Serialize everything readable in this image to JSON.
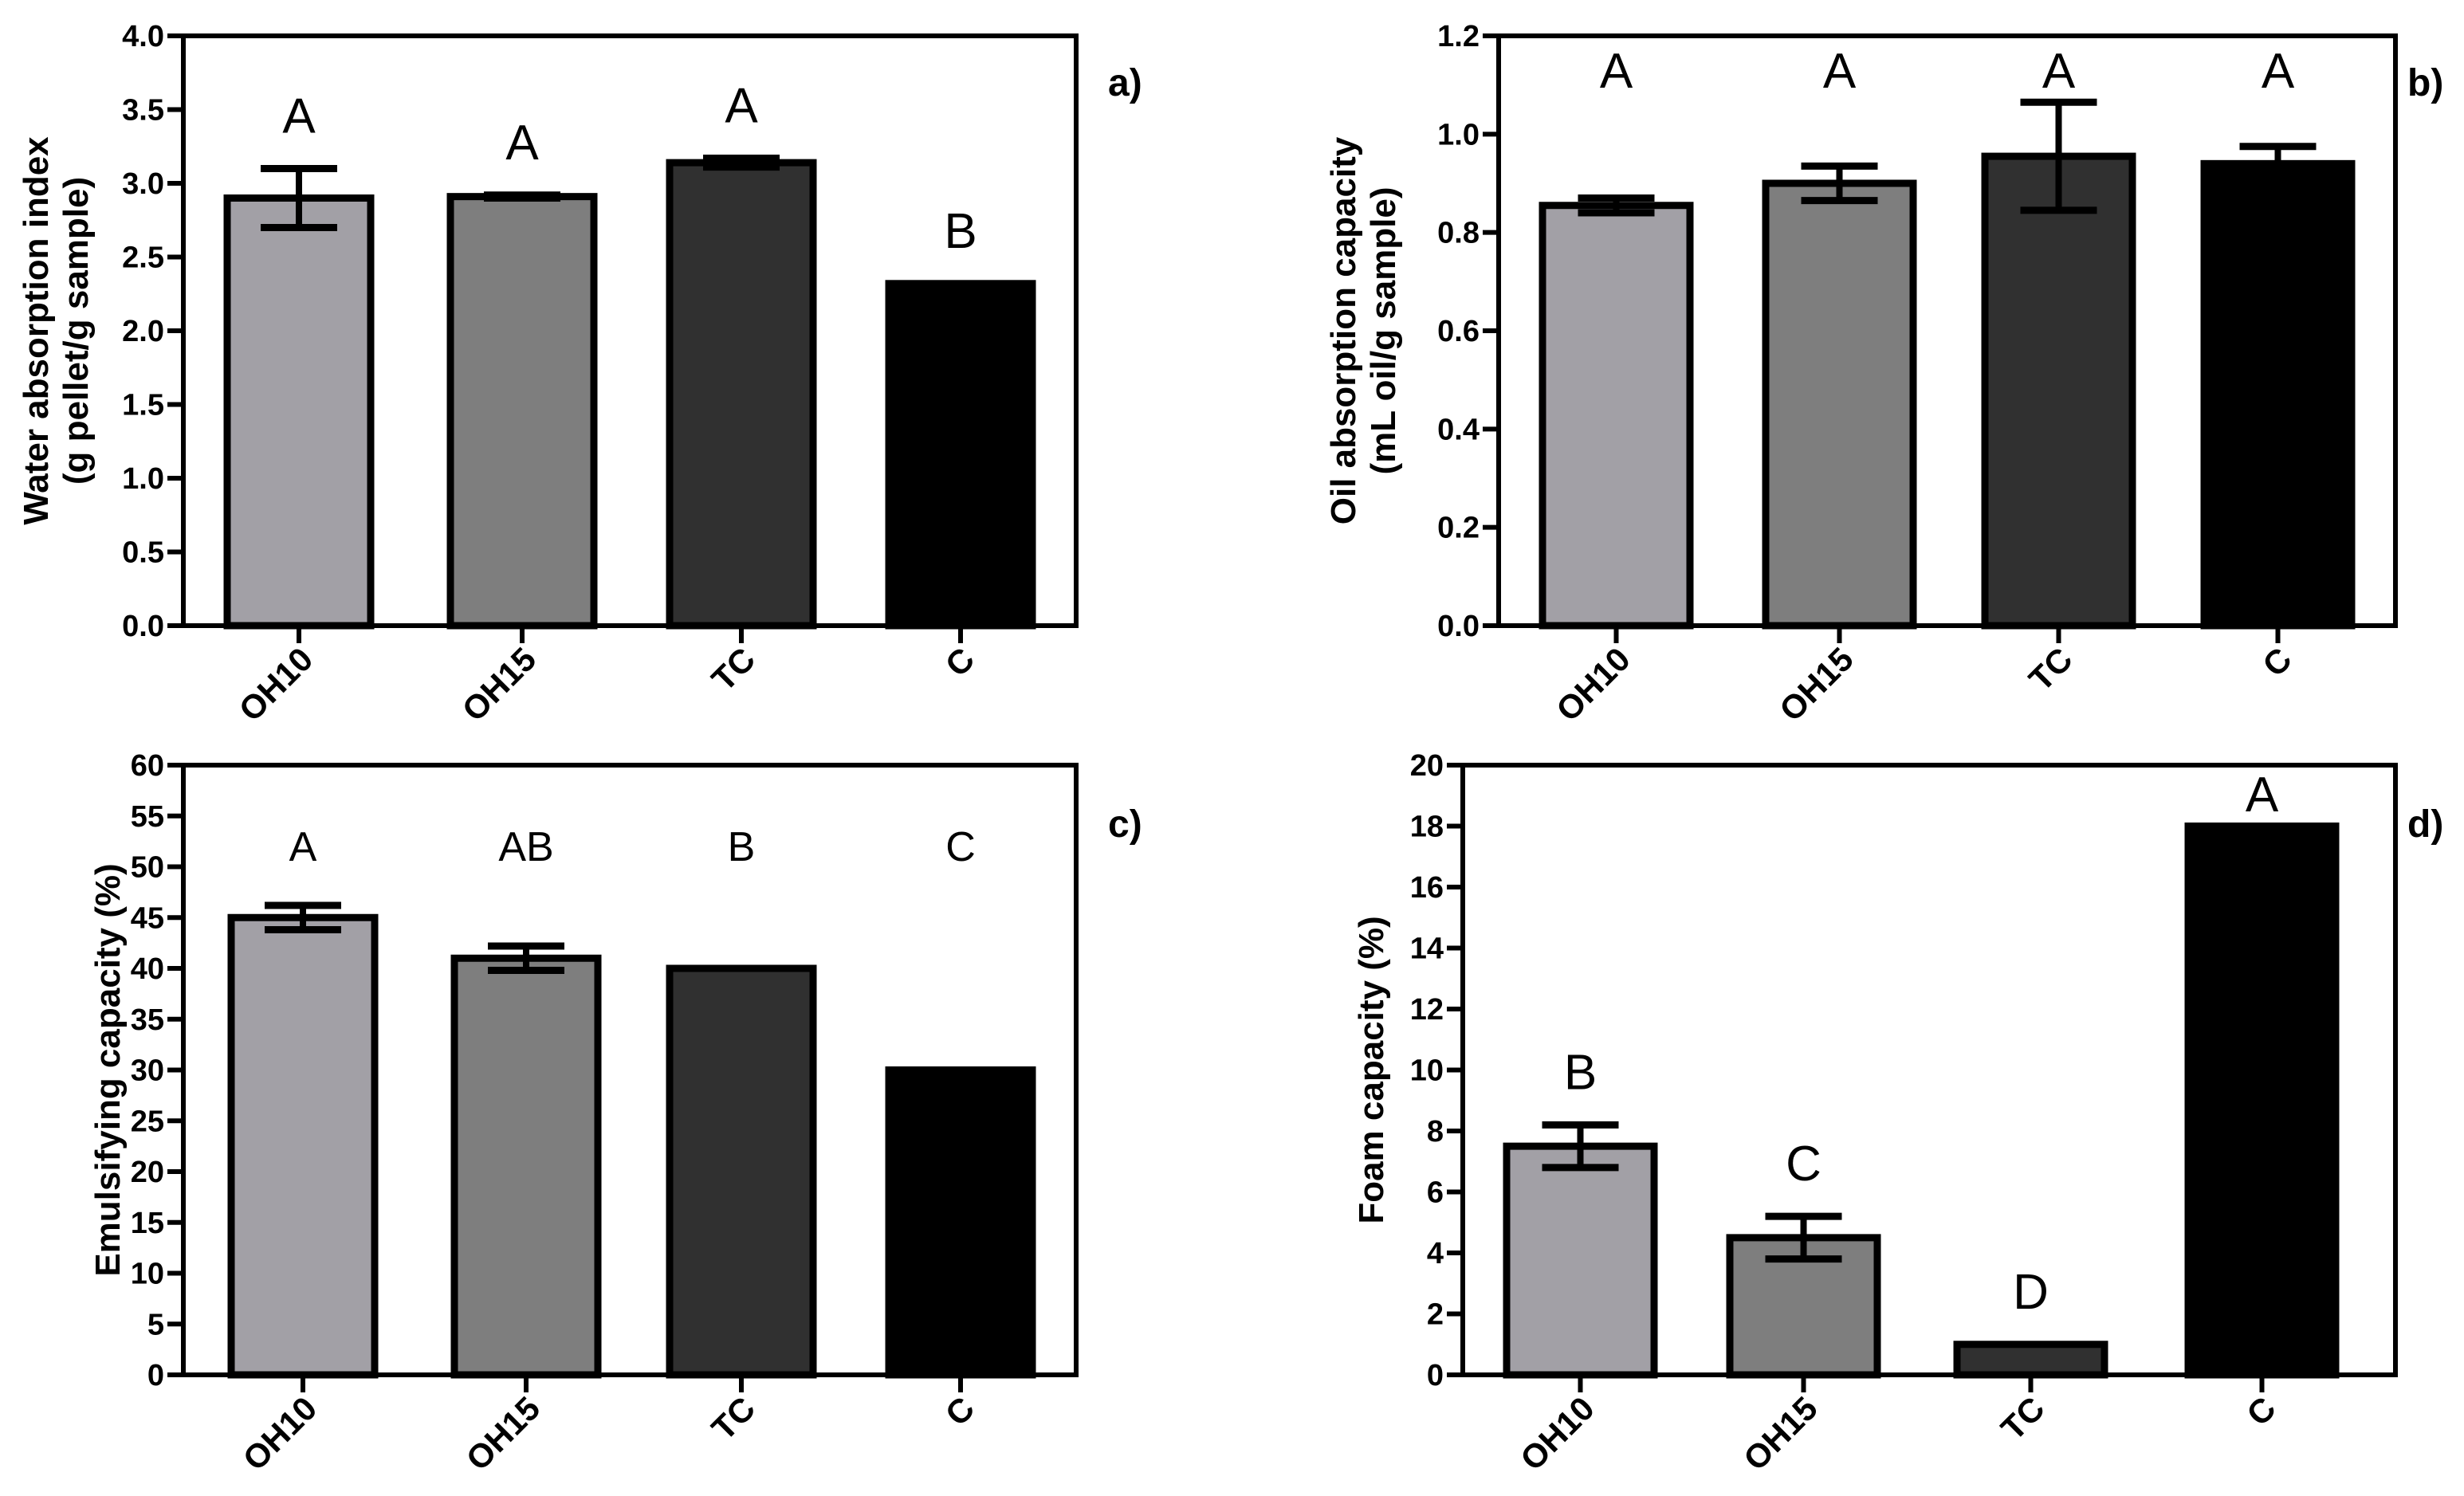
{
  "chart_data": [
    {
      "type": "bar",
      "panel": "a)",
      "title": "",
      "categories": [
        "OH10",
        "OH15",
        "TC",
        "C"
      ],
      "values": [
        2.9,
        2.91,
        3.14,
        2.32
      ],
      "errors": [
        0.2,
        0.01,
        0.03,
        0.0
      ],
      "letters": [
        "A",
        "A",
        "A",
        "B"
      ],
      "colors": [
        "#a2a0a6",
        "#7e7e7e",
        "#303030",
        "#000000"
      ],
      "xlabel": "",
      "ylabel": [
        "Water absorption index",
        "(g pellet/g sample)"
      ],
      "ylim": [
        0,
        4.0
      ],
      "yticks": [
        "0.0",
        "0.5",
        "1.0",
        "1.5",
        "2.0",
        "2.5",
        "3.0",
        "3.5",
        "4.0"
      ],
      "grid": false
    },
    {
      "type": "bar",
      "panel": "b)",
      "title": "",
      "categories": [
        "OH10",
        "OH15",
        "TC",
        "C"
      ],
      "values": [
        0.855,
        0.9,
        0.955,
        0.94
      ],
      "errors": [
        0.015,
        0.035,
        0.11,
        0.035
      ],
      "letters": [
        "A",
        "A",
        "A",
        "A"
      ],
      "colors": [
        "#a2a0a6",
        "#7e7e7e",
        "#303030",
        "#000000"
      ],
      "xlabel": "",
      "ylabel": [
        "Oil absorption capacity",
        "(mL oil/g sample)"
      ],
      "ylim": [
        0,
        1.2
      ],
      "yticks": [
        "0.0",
        "0.2",
        "0.4",
        "0.6",
        "0.8",
        "1.0",
        "1.2"
      ],
      "grid": false
    },
    {
      "type": "bar",
      "panel": "c)",
      "title": "",
      "categories": [
        "OH10",
        "OH15",
        "TC",
        "C"
      ],
      "values": [
        45,
        41,
        40,
        30
      ],
      "errors": [
        1.2,
        1.2,
        0,
        0
      ],
      "letters": [
        "A",
        "AB",
        "B",
        "C"
      ],
      "colors": [
        "#a2a0a6",
        "#7e7e7e",
        "#303030",
        "#000000"
      ],
      "xlabel": "",
      "ylabel": [
        "Emulsifying capacity (%)"
      ],
      "ylim": [
        0,
        60
      ],
      "yticks": [
        "0",
        "5",
        "10",
        "15",
        "20",
        "25",
        "30",
        "35",
        "40",
        "45",
        "50",
        "55",
        "60"
      ],
      "grid": false
    },
    {
      "type": "bar",
      "panel": "d)",
      "title": "",
      "categories": [
        "OH10",
        "OH15",
        "TC",
        "C"
      ],
      "values": [
        7.5,
        4.5,
        1.0,
        18.0
      ],
      "errors": [
        0.7,
        0.7,
        0,
        0
      ],
      "letters": [
        "B",
        "C",
        "D",
        "A"
      ],
      "colors": [
        "#a2a0a6",
        "#7e7e7e",
        "#303030",
        "#000000"
      ],
      "xlabel": "",
      "ylabel": [
        "Foam capacity (%)"
      ],
      "ylim": [
        0,
        20
      ],
      "yticks": [
        "0",
        "2",
        "4",
        "6",
        "8",
        "10",
        "12",
        "14",
        "16",
        "18",
        "20"
      ],
      "grid": false
    }
  ]
}
